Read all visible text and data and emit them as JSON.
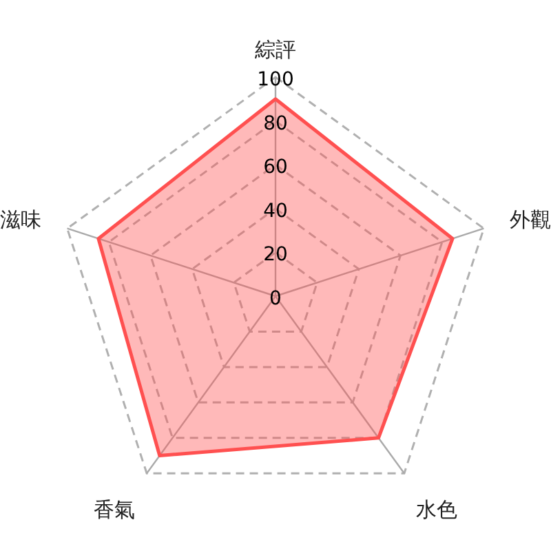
{
  "chart_data": {
    "type": "radar",
    "categories": [
      "綜評",
      "外觀",
      "水色",
      "香氣",
      "滋味"
    ],
    "series": [
      {
        "color": "#ff5050",
        "values": [
          90,
          85,
          80,
          90,
          85
        ]
      }
    ],
    "ylim": [
      0,
      100
    ],
    "yticks": [
      0,
      20,
      40,
      60,
      80,
      100
    ],
    "grid": true,
    "line_style": "solid",
    "marker": "none"
  }
}
